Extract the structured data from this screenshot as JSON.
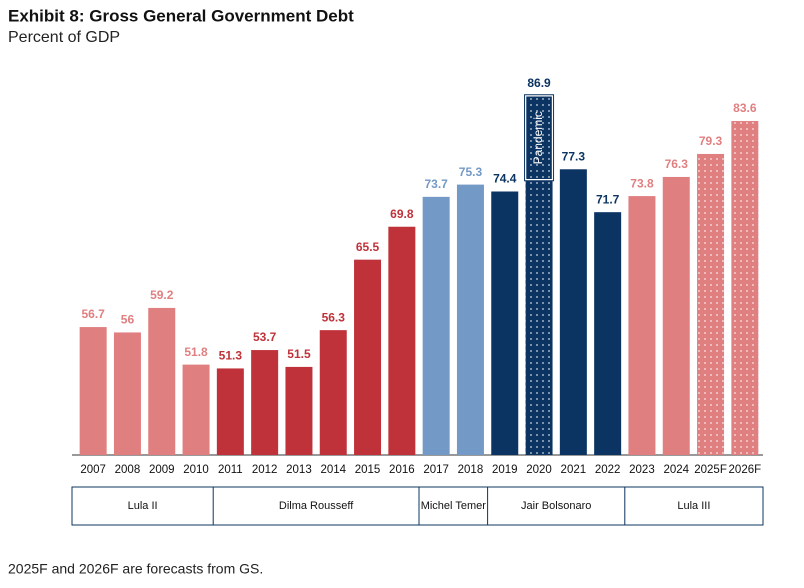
{
  "chart_data": {
    "type": "bar",
    "title": "Exhibit 8: Gross General Government Debt",
    "subtitle": "Percent of GDP",
    "categories": [
      "2007",
      "2008",
      "2009",
      "2010",
      "2011",
      "2012",
      "2013",
      "2014",
      "2015",
      "2016",
      "2017",
      "2018",
      "2019",
      "2020",
      "2021",
      "2022",
      "2023",
      "2024",
      "2025F",
      "2026F"
    ],
    "values": [
      56.7,
      56.0,
      59.2,
      51.8,
      51.3,
      53.7,
      51.5,
      56.3,
      65.5,
      69.8,
      73.7,
      75.3,
      74.4,
      86.9,
      77.3,
      71.7,
      73.8,
      76.3,
      79.3,
      83.6
    ],
    "colors": [
      "#e07f80",
      "#e07f80",
      "#e07f80",
      "#e07f80",
      "#c0323a",
      "#c0323a",
      "#c0323a",
      "#c0323a",
      "#c0323a",
      "#c0323a",
      "#7399c6",
      "#7399c6",
      "#0c3462",
      "#0c3462",
      "#0c3462",
      "#0c3462",
      "#e07f80",
      "#e07f80",
      "#e07f80",
      "#e07f80"
    ],
    "dotted": [
      false,
      false,
      false,
      false,
      false,
      false,
      false,
      false,
      false,
      false,
      false,
      false,
      false,
      true,
      false,
      false,
      false,
      false,
      true,
      true
    ],
    "ylim": [
      40,
      90
    ],
    "groups": [
      {
        "label": "Lula II",
        "span": 4
      },
      {
        "label": "Dilma Rousseff",
        "span": 6
      },
      {
        "label": "Michel Temer",
        "span": 2
      },
      {
        "label": "Jair Bolsonaro",
        "span": 4
      },
      {
        "label": "Lula III",
        "span": 4
      }
    ],
    "annotation": {
      "text": "Pandemic",
      "category_index": 13
    },
    "footnote": "2025F and 2026F are forecasts from GS."
  }
}
